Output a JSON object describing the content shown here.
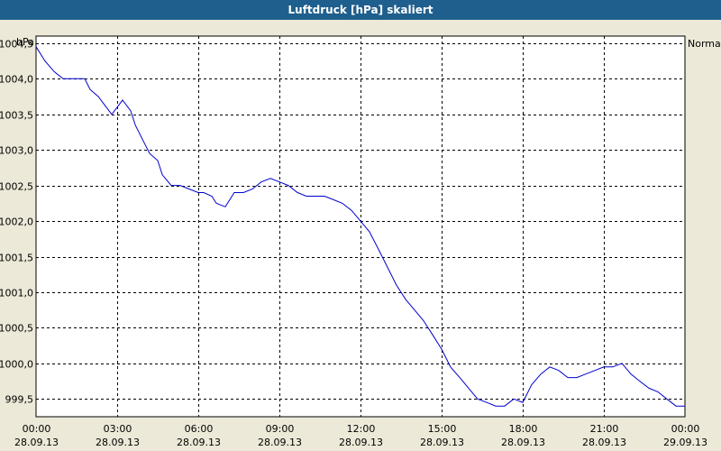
{
  "chart_data": {
    "type": "line",
    "title": "Luftdruck [hPa] skaliert",
    "y_unit": "hPa",
    "legend_label": "Normal",
    "ylim": [
      999.25,
      1004.6
    ],
    "yticks": [
      999.5,
      1000.0,
      1000.5,
      1001.0,
      1001.5,
      1002.0,
      1002.5,
      1003.0,
      1003.5,
      1004.0,
      1004.5
    ],
    "ytick_labels": [
      "999,5",
      "1000,0",
      "1000,5",
      "1001,0",
      "1001,5",
      "1002,0",
      "1002,5",
      "1003,0",
      "1003,5",
      "1004,0",
      "1004,5"
    ],
    "xlim": [
      0,
      24
    ],
    "xticks": [
      0,
      3,
      6,
      9,
      12,
      15,
      18,
      21,
      24
    ],
    "xtick_labels": [
      [
        "00:00",
        "28.09.13"
      ],
      [
        "03:00",
        "28.09.13"
      ],
      [
        "06:00",
        "28.09.13"
      ],
      [
        "09:00",
        "28.09.13"
      ],
      [
        "12:00",
        "28.09.13"
      ],
      [
        "15:00",
        "28.09.13"
      ],
      [
        "18:00",
        "28.09.13"
      ],
      [
        "21:00",
        "28.09.13"
      ],
      [
        "00:00",
        "29.09.13"
      ]
    ],
    "grid": true,
    "legend_position": "top-right",
    "colors": {
      "line": "#0000cc",
      "plot_background": "#ffffff",
      "grid": "#000000",
      "window_background": "#ece9d8",
      "titlebar": "#1f5f8d"
    },
    "series": [
      {
        "name": "Normal",
        "x": [
          0,
          0.33,
          0.67,
          1.0,
          1.2,
          1.5,
          1.8,
          2.0,
          2.3,
          2.6,
          2.8,
          3.0,
          3.2,
          3.5,
          3.67,
          4.0,
          4.2,
          4.5,
          4.67,
          5.0,
          5.2,
          5.33,
          5.67,
          6.0,
          6.2,
          6.5,
          6.67,
          7.0,
          7.33,
          7.67,
          8.0,
          8.33,
          8.67,
          9.0,
          9.33,
          9.67,
          10.0,
          10.33,
          10.67,
          11.0,
          11.33,
          11.67,
          12.0,
          12.33,
          12.67,
          13.0,
          13.33,
          13.67,
          14.0,
          14.33,
          14.67,
          15.0,
          15.33,
          15.67,
          16.0,
          16.33,
          16.67,
          17.0,
          17.33,
          17.67,
          18.0,
          18.33,
          18.67,
          19.0,
          19.33,
          19.67,
          20.0,
          20.33,
          20.67,
          21.0,
          21.33,
          21.67,
          22.0,
          22.33,
          22.67,
          23.0,
          23.33,
          23.67,
          24.0
        ],
        "y": [
          1004.45,
          1004.25,
          1004.1,
          1004.0,
          1004.0,
          1004.0,
          1004.0,
          1003.85,
          1003.75,
          1003.6,
          1003.5,
          1003.6,
          1003.7,
          1003.55,
          1003.35,
          1003.1,
          1002.95,
          1002.85,
          1002.65,
          1002.5,
          1002.5,
          1002.5,
          1002.45,
          1002.4,
          1002.4,
          1002.35,
          1002.25,
          1002.2,
          1002.4,
          1002.4,
          1002.45,
          1002.55,
          1002.6,
          1002.55,
          1002.5,
          1002.4,
          1002.35,
          1002.35,
          1002.35,
          1002.3,
          1002.25,
          1002.15,
          1002.0,
          1001.85,
          1001.6,
          1001.35,
          1001.1,
          1000.9,
          1000.75,
          1000.6,
          1000.4,
          1000.2,
          999.95,
          999.8,
          999.65,
          999.5,
          999.45,
          999.4,
          999.4,
          999.5,
          999.45,
          999.7,
          999.85,
          999.95,
          999.9,
          999.8,
          999.8,
          999.85,
          999.9,
          999.95,
          999.95,
          1000.0,
          999.85,
          999.75,
          999.65,
          999.6,
          999.5,
          999.4,
          999.4
        ]
      }
    ]
  }
}
